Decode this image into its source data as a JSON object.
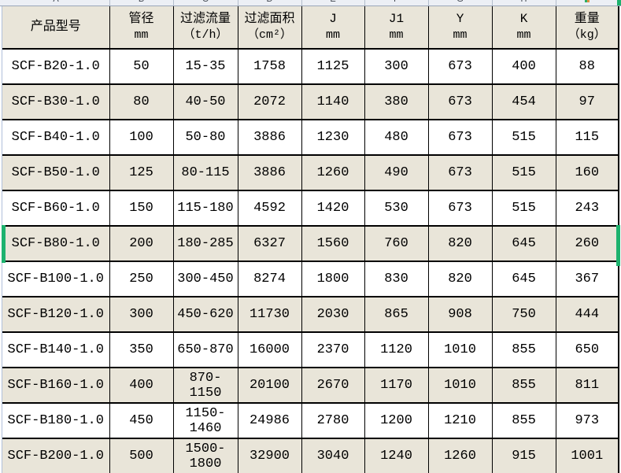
{
  "sheet": {
    "column_letters": [
      "A",
      "B",
      "C",
      "D",
      "E",
      "F",
      "G",
      "H",
      "I"
    ],
    "colors": {
      "selection_green": "#1db26e",
      "row_stripe_beige": "#e9e5d9",
      "row_white": "#ffffff",
      "column_strip_bg": "#eceff5",
      "border_black": "#000000"
    }
  },
  "table": {
    "headers": [
      {
        "title": "产品型号",
        "unit": ""
      },
      {
        "title": "管径",
        "unit": "mm"
      },
      {
        "title": "过滤流量",
        "unit": "（t/h）"
      },
      {
        "title": "过滤面积",
        "unit": "（cm²）"
      },
      {
        "title": "J",
        "unit": "mm"
      },
      {
        "title": "J1",
        "unit": "mm"
      },
      {
        "title": "Y",
        "unit": "mm"
      },
      {
        "title": "K",
        "unit": "mm"
      },
      {
        "title": "重量",
        "unit": "（kg）"
      }
    ],
    "rows": [
      [
        "SCF-B20-1.0",
        "50",
        "15-35",
        "1758",
        "1125",
        "300",
        "673",
        "400",
        "88"
      ],
      [
        "SCF-B30-1.0",
        "80",
        "40-50",
        "2072",
        "1140",
        "380",
        "673",
        "454",
        "97"
      ],
      [
        "SCF-B40-1.0",
        "100",
        "50-80",
        "3886",
        "1230",
        "480",
        "673",
        "515",
        "115"
      ],
      [
        "SCF-B50-1.0",
        "125",
        "80-115",
        "3886",
        "1260",
        "490",
        "673",
        "515",
        "160"
      ],
      [
        "SCF-B60-1.0",
        "150",
        "115-180",
        "4592",
        "1420",
        "530",
        "673",
        "515",
        "243"
      ],
      [
        "SCF-B80-1.0",
        "200",
        "180-285",
        "6327",
        "1560",
        "760",
        "820",
        "645",
        "260"
      ],
      [
        "SCF-B100-1.0",
        "250",
        "300-450",
        "8274",
        "1800",
        "830",
        "820",
        "645",
        "367"
      ],
      [
        "SCF-B120-1.0",
        "300",
        "450-620",
        "11730",
        "2030",
        "865",
        "908",
        "750",
        "444"
      ],
      [
        "SCF-B140-1.0",
        "350",
        "650-870",
        "16000",
        "2370",
        "1120",
        "1010",
        "855",
        "650"
      ],
      [
        "SCF-B160-1.0",
        "400",
        "870-1150",
        "20100",
        "2670",
        "1170",
        "1010",
        "855",
        "811"
      ],
      [
        "SCF-B180-1.0",
        "450",
        "1150-1460",
        "24986",
        "2780",
        "1200",
        "1210",
        "855",
        "973"
      ],
      [
        "SCF-B200-1.0",
        "500",
        "1500-1800",
        "32900",
        "3040",
        "1240",
        "1260",
        "915",
        "1001"
      ]
    ],
    "selected_row_index": 5,
    "selected_model": "SCF-B80-1.0"
  }
}
